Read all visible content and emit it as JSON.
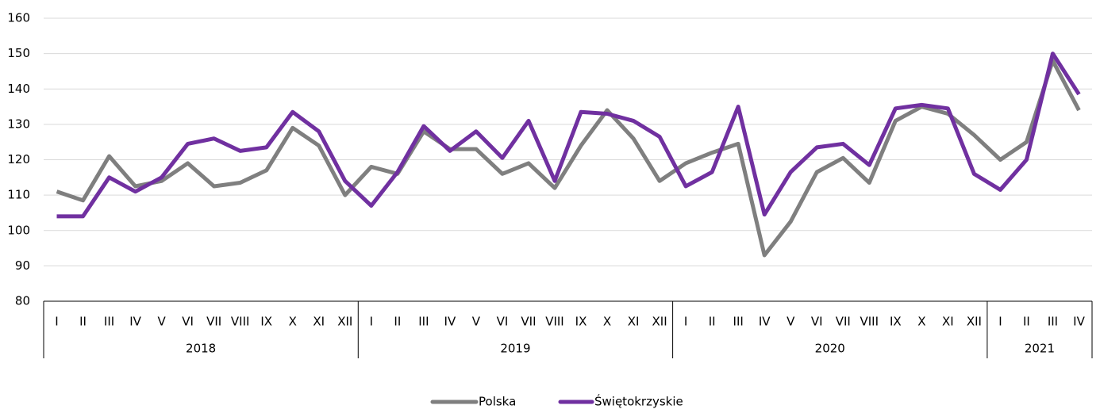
{
  "chart_data": {
    "type": "line",
    "year_groups": [
      {
        "name": "2018",
        "months": [
          "I",
          "II",
          "III",
          "IV",
          "V",
          "VI",
          "VII",
          "VIII",
          "IX",
          "X",
          "XI",
          "XII"
        ]
      },
      {
        "name": "2019",
        "months": [
          "I",
          "II",
          "III",
          "IV",
          "V",
          "VI",
          "VII",
          "VIII",
          "IX",
          "X",
          "XI",
          "XII"
        ]
      },
      {
        "name": "2020",
        "months": [
          "I",
          "II",
          "III",
          "IV",
          "V",
          "VI",
          "VII",
          "VIII",
          "IX",
          "X",
          "XI",
          "XII"
        ]
      },
      {
        "name": "2021",
        "months": [
          "I",
          "II",
          "III",
          "IV"
        ]
      }
    ],
    "series": [
      {
        "name": "Polska",
        "color": "#7f7f7f",
        "values": [
          111,
          108.5,
          121,
          112.5,
          114,
          119,
          112.5,
          113.5,
          117,
          129,
          124,
          110,
          118,
          116,
          128,
          123,
          123,
          116,
          119,
          112,
          124,
          134,
          126,
          114,
          119,
          122,
          124.5,
          93,
          102.5,
          116.5,
          120.5,
          113.5,
          131,
          135,
          133,
          127,
          120,
          125,
          148,
          134
        ]
      },
      {
        "name": "Świętokrzyskie",
        "color": "#7030a0",
        "values": [
          104,
          104,
          115,
          111,
          115,
          124.5,
          126,
          122.5,
          123.5,
          133.5,
          128,
          114,
          107,
          116.5,
          129.5,
          122.5,
          128,
          120.5,
          131,
          114,
          133.5,
          133,
          131,
          126.5,
          112.5,
          116.5,
          135,
          104.5,
          116.5,
          123.5,
          124.5,
          118.5,
          134.5,
          135.5,
          134.5,
          116,
          111.5,
          120,
          150,
          138.5
        ]
      }
    ],
    "ylim": [
      80,
      160
    ],
    "yticks": [
      80,
      90,
      100,
      110,
      120,
      130,
      140,
      150,
      160
    ],
    "grid": true,
    "legend": "bottom"
  }
}
